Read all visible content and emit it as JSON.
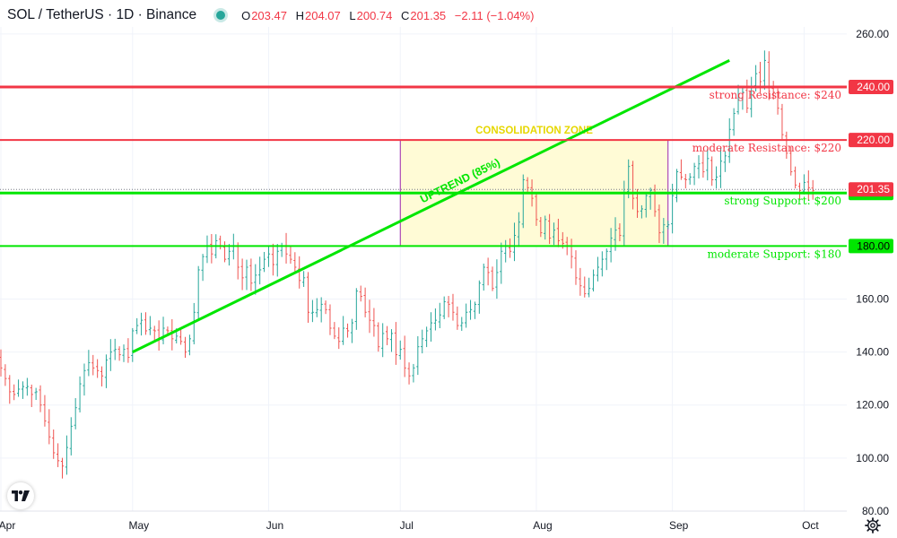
{
  "header": {
    "symbol": "SOL / TetherUS · 1D · Binance",
    "ohlc": [
      {
        "key": "O",
        "value": "203.47"
      },
      {
        "key": "H",
        "value": "204.07"
      },
      {
        "key": "L",
        "value": "200.74"
      },
      {
        "key": "C",
        "value": "201.35"
      },
      {
        "key": "",
        "value": "−2.11 (−1.04%)"
      }
    ]
  },
  "colors": {
    "up": "#26a69a",
    "down": "#ef5350",
    "resistance": "#f23645",
    "support": "#00e600",
    "zone_fill": "#fffbd6",
    "zone_border": "#9c27b0",
    "zone_label": "#e6d700",
    "current_price": "#f23645"
  },
  "chart_data": {
    "type": "candlestick",
    "title": "SOL / TetherUS · 1D · Binance",
    "ylim": [
      80,
      265
    ],
    "yticks": [
      80,
      100,
      120,
      140,
      160,
      180,
      200,
      220,
      240,
      260
    ],
    "x_tick_labels": [
      {
        "date": "2024-04-01",
        "label": "Apr"
      },
      {
        "date": "2024-05-01",
        "label": "May"
      },
      {
        "date": "2024-06-01",
        "label": "Jun"
      },
      {
        "date": "2024-07-01",
        "label": "Jul"
      },
      {
        "date": "2024-08-01",
        "label": "Aug"
      },
      {
        "date": "2024-09-01",
        "label": "Sep"
      },
      {
        "date": "2024-10-01",
        "label": "Oct"
      }
    ],
    "date_range": [
      "2024-04-01",
      "2024-09-28"
    ],
    "closes_approx": [
      134,
      130,
      125,
      124,
      126,
      127,
      127,
      124,
      125,
      120,
      114,
      108,
      102,
      99,
      97,
      104,
      112,
      119,
      128,
      133,
      136,
      134,
      133,
      131,
      137,
      140,
      141,
      139,
      141,
      138,
      148,
      150,
      152,
      148,
      149,
      148,
      145,
      149,
      148,
      145,
      146,
      144,
      140,
      145,
      155,
      171,
      176,
      180,
      177,
      182,
      180,
      175,
      178,
      180,
      172,
      168,
      172,
      166,
      169,
      171,
      175,
      177,
      173,
      178,
      180,
      177,
      175,
      172,
      167,
      168,
      155,
      155,
      156,
      158,
      156,
      149,
      146,
      144,
      149,
      148,
      151,
      163,
      161,
      155,
      152,
      150,
      142,
      147,
      145,
      147,
      139,
      141,
      134,
      131,
      134,
      142,
      145,
      148,
      151,
      152,
      154,
      159,
      158,
      155,
      150,
      151,
      155,
      156,
      158,
      166,
      172,
      170,
      164,
      170,
      178,
      180,
      178,
      184,
      189,
      205,
      202,
      198,
      190,
      185,
      190,
      183,
      186,
      182,
      181,
      180,
      176,
      168,
      165,
      162,
      164,
      169,
      172,
      175,
      178,
      183,
      186,
      184,
      200,
      210,
      198,
      193,
      194,
      199,
      201,
      193,
      185,
      188,
      188,
      199,
      208,
      206,
      205,
      206,
      210,
      211,
      208,
      213,
      205,
      206,
      212,
      214,
      224,
      230,
      236,
      238,
      232,
      240,
      245,
      242,
      250,
      240,
      238,
      232,
      222,
      215,
      208,
      203,
      201,
      204,
      202,
      201
    ],
    "current_price": 201.35,
    "levels": [
      {
        "price": 240,
        "label": "strong Resistance: $240",
        "axis_label": "240.00",
        "kind": "resistance",
        "strength": "strong"
      },
      {
        "price": 220,
        "label": "moderate Resistance: $220",
        "axis_label": "220.00",
        "kind": "resistance",
        "strength": "moderate"
      },
      {
        "price": 200,
        "label": "strong Support: $200",
        "axis_label": "200.00",
        "kind": "support",
        "strength": "strong"
      },
      {
        "price": 180,
        "label": "moderate Support: $180",
        "axis_label": "180.00",
        "kind": "support",
        "strength": "moderate"
      }
    ],
    "current_price_label": "201.35",
    "zone": {
      "label": "CONSOLIDATION ZONE",
      "start": "2024-07-01",
      "end": "2024-08-31",
      "low": 180,
      "high": 220
    },
    "trendline": {
      "label": "UPTREND (85%)",
      "start": {
        "date": "2024-05-01",
        "price": 140
      },
      "end": {
        "date": "2024-09-14",
        "price": 250
      }
    }
  }
}
